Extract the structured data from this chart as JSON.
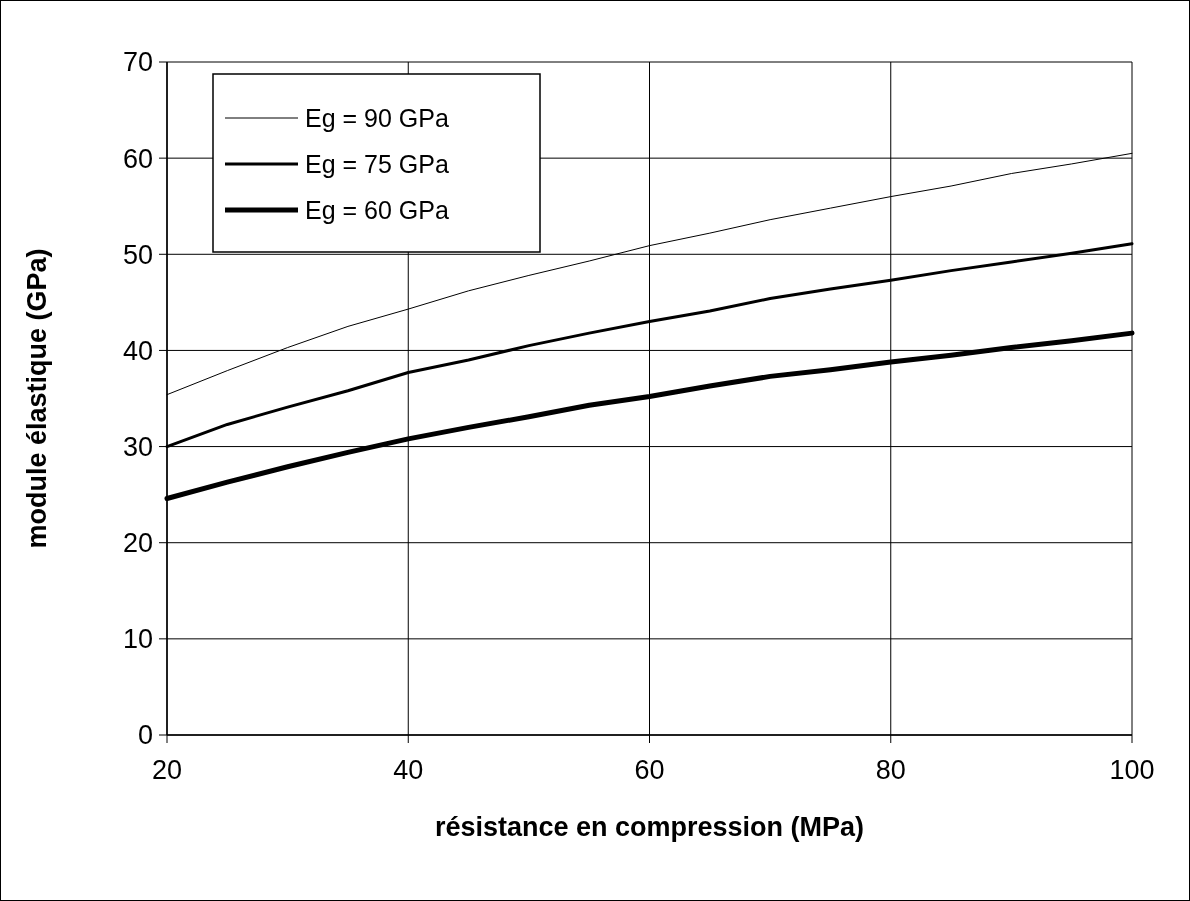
{
  "chart_data": {
    "type": "line",
    "xlabel": "résistance en compression (MPa)",
    "ylabel": "module élastique (GPa)",
    "x": [
      20,
      25,
      30,
      35,
      40,
      45,
      50,
      55,
      60,
      65,
      70,
      75,
      80,
      85,
      90,
      95,
      100
    ],
    "series": [
      {
        "name": "Eg = 90 GPa",
        "color": "#000000",
        "values": [
          35.4,
          37.9,
          40.3,
          42.5,
          44.3,
          46.2,
          47.8,
          49.3,
          50.9,
          52.2,
          53.6,
          54.8,
          56.0,
          57.1,
          58.4,
          59.4,
          60.5
        ]
      },
      {
        "name": "Eg = 75 GPa",
        "color": "#000000",
        "values": [
          30.0,
          32.3,
          34.1,
          35.8,
          37.7,
          39.0,
          40.5,
          41.8,
          43.0,
          44.1,
          45.4,
          46.4,
          47.3,
          48.3,
          49.2,
          50.1,
          51.1
        ]
      },
      {
        "name": "Eg = 60 GPa",
        "color": "#000000",
        "values": [
          24.6,
          26.3,
          27.9,
          29.4,
          30.8,
          32.0,
          33.1,
          34.3,
          35.2,
          36.3,
          37.3,
          38.0,
          38.8,
          39.5,
          40.3,
          41.0,
          41.8
        ]
      }
    ],
    "xlim": [
      20,
      100
    ],
    "xticks": [
      20,
      40,
      60,
      80,
      100
    ],
    "ylim": [
      0,
      70
    ],
    "yticks": [
      0,
      10,
      20,
      30,
      40,
      50,
      60,
      70
    ],
    "grid": true,
    "legend": "top left",
    "marker": "none",
    "line_style": "solid"
  }
}
